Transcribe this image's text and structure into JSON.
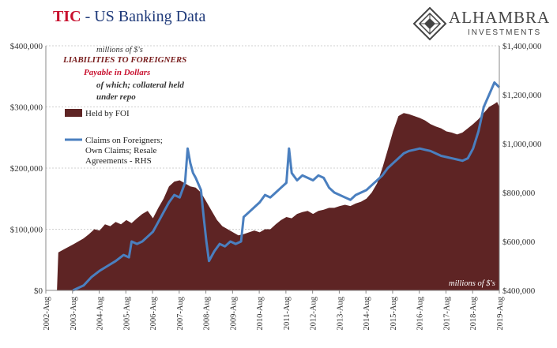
{
  "header": {
    "title_prefix": "TIC",
    "title_rest": " - US Banking Data"
  },
  "logo": {
    "name": "ALHAMBRA",
    "sub": "INVESTMENTS"
  },
  "colors": {
    "area": "#5e2424",
    "line": "#4a7fbf",
    "title_red": "#c8102e",
    "title_blue": "#1f3a7a",
    "annotation_red": "#c8102e",
    "annotation_dark": "#7a2020"
  },
  "chart_data": {
    "type": "area+line",
    "units_label_top": "millions of $'s",
    "units_label_bottom": "millions of $'s",
    "annotations": {
      "line1": "LIABILITIES TO FOREIGNERS",
      "line2": "Payable in Dollars",
      "line3": "of which; collateral held",
      "line4": "under repo"
    },
    "legend": [
      {
        "name": "Held by FOI",
        "kind": "area"
      },
      {
        "name": "Claims on Foreigners; Own Claims; Resale Agreements - RHS",
        "kind": "line",
        "lines": [
          "Claims on Foreigners;",
          "Own Claims; Resale",
          "Agreements - RHS"
        ]
      }
    ],
    "x_labels": [
      "2002-Aug",
      "2003-Aug",
      "2004-Aug",
      "2005-Aug",
      "2006-Aug",
      "2007-Aug",
      "2008-Aug",
      "2009-Aug",
      "2010-Aug",
      "2011-Aug",
      "2012-Aug",
      "2013-Aug",
      "2014-Aug",
      "2015-Aug",
      "2016-Aug",
      "2017-Aug",
      "2018-Aug",
      "2019-Aug"
    ],
    "y_left": {
      "min": 0,
      "max": 400000,
      "ticks": [
        0,
        100000,
        200000,
        300000,
        400000
      ],
      "tick_labels": [
        "$0",
        "$100,000",
        "$200,000",
        "$300,000",
        "$400,000"
      ]
    },
    "y_right": {
      "min": 400000,
      "max": 1400000,
      "ticks": [
        400000,
        600000,
        800000,
        1000000,
        1200000,
        1400000
      ],
      "tick_labels": [
        "$400,000",
        "$600,000",
        "$800,000",
        "$1,000,000",
        "$1,200,000",
        "$1,400,000"
      ]
    },
    "x_range": [
      2002.583,
      2019.583
    ],
    "series": [
      {
        "name": "Held by FOI",
        "axis": "left",
        "points": [
          [
            2003.0,
            0
          ],
          [
            2003.05,
            62000
          ],
          [
            2003.3,
            68000
          ],
          [
            2003.6,
            75000
          ],
          [
            2003.8,
            80000
          ],
          [
            2004.0,
            85000
          ],
          [
            2004.2,
            92000
          ],
          [
            2004.4,
            100000
          ],
          [
            2004.6,
            98000
          ],
          [
            2004.8,
            108000
          ],
          [
            2005.0,
            105000
          ],
          [
            2005.2,
            112000
          ],
          [
            2005.4,
            108000
          ],
          [
            2005.6,
            115000
          ],
          [
            2005.8,
            110000
          ],
          [
            2006.0,
            118000
          ],
          [
            2006.2,
            125000
          ],
          [
            2006.4,
            130000
          ],
          [
            2006.6,
            118000
          ],
          [
            2006.8,
            135000
          ],
          [
            2007.0,
            150000
          ],
          [
            2007.2,
            170000
          ],
          [
            2007.4,
            178000
          ],
          [
            2007.6,
            180000
          ],
          [
            2007.8,
            175000
          ],
          [
            2008.0,
            170000
          ],
          [
            2008.2,
            168000
          ],
          [
            2008.4,
            160000
          ],
          [
            2008.6,
            145000
          ],
          [
            2008.8,
            130000
          ],
          [
            2009.0,
            115000
          ],
          [
            2009.2,
            105000
          ],
          [
            2009.4,
            100000
          ],
          [
            2009.6,
            95000
          ],
          [
            2009.8,
            90000
          ],
          [
            2010.0,
            92000
          ],
          [
            2010.2,
            95000
          ],
          [
            2010.4,
            98000
          ],
          [
            2010.6,
            95000
          ],
          [
            2010.8,
            100000
          ],
          [
            2011.0,
            100000
          ],
          [
            2011.2,
            108000
          ],
          [
            2011.4,
            115000
          ],
          [
            2011.6,
            120000
          ],
          [
            2011.8,
            118000
          ],
          [
            2012.0,
            125000
          ],
          [
            2012.2,
            128000
          ],
          [
            2012.4,
            130000
          ],
          [
            2012.6,
            125000
          ],
          [
            2012.8,
            130000
          ],
          [
            2013.0,
            132000
          ],
          [
            2013.2,
            135000
          ],
          [
            2013.4,
            135000
          ],
          [
            2013.6,
            138000
          ],
          [
            2013.8,
            140000
          ],
          [
            2014.0,
            138000
          ],
          [
            2014.2,
            142000
          ],
          [
            2014.4,
            145000
          ],
          [
            2014.6,
            150000
          ],
          [
            2014.8,
            160000
          ],
          [
            2015.0,
            175000
          ],
          [
            2015.2,
            200000
          ],
          [
            2015.4,
            230000
          ],
          [
            2015.6,
            260000
          ],
          [
            2015.8,
            285000
          ],
          [
            2016.0,
            290000
          ],
          [
            2016.2,
            288000
          ],
          [
            2016.4,
            285000
          ],
          [
            2016.6,
            282000
          ],
          [
            2016.8,
            278000
          ],
          [
            2017.0,
            272000
          ],
          [
            2017.2,
            268000
          ],
          [
            2017.4,
            265000
          ],
          [
            2017.6,
            260000
          ],
          [
            2017.8,
            258000
          ],
          [
            2018.0,
            255000
          ],
          [
            2018.2,
            258000
          ],
          [
            2018.4,
            265000
          ],
          [
            2018.6,
            272000
          ],
          [
            2018.8,
            280000
          ],
          [
            2019.0,
            290000
          ],
          [
            2019.2,
            300000
          ],
          [
            2019.4,
            305000
          ],
          [
            2019.5,
            308000
          ],
          [
            2019.583,
            300000
          ]
        ]
      },
      {
        "name": "Claims on Foreigners; Own Claims; Resale Agreements - RHS",
        "axis": "right",
        "points": [
          [
            2003.6,
            400000
          ],
          [
            2004.0,
            420000
          ],
          [
            2004.3,
            455000
          ],
          [
            2004.6,
            480000
          ],
          [
            2004.9,
            500000
          ],
          [
            2005.2,
            520000
          ],
          [
            2005.5,
            545000
          ],
          [
            2005.7,
            535000
          ],
          [
            2005.8,
            600000
          ],
          [
            2006.0,
            590000
          ],
          [
            2006.2,
            600000
          ],
          [
            2006.4,
            620000
          ],
          [
            2006.6,
            640000
          ],
          [
            2006.8,
            680000
          ],
          [
            2007.0,
            720000
          ],
          [
            2007.2,
            760000
          ],
          [
            2007.4,
            790000
          ],
          [
            2007.6,
            780000
          ],
          [
            2007.8,
            840000
          ],
          [
            2007.9,
            980000
          ],
          [
            2008.0,
            920000
          ],
          [
            2008.1,
            880000
          ],
          [
            2008.2,
            860000
          ],
          [
            2008.4,
            810000
          ],
          [
            2008.5,
            700000
          ],
          [
            2008.6,
            600000
          ],
          [
            2008.7,
            520000
          ],
          [
            2008.9,
            560000
          ],
          [
            2009.1,
            590000
          ],
          [
            2009.3,
            580000
          ],
          [
            2009.5,
            600000
          ],
          [
            2009.7,
            590000
          ],
          [
            2009.9,
            600000
          ],
          [
            2010.0,
            700000
          ],
          [
            2010.2,
            720000
          ],
          [
            2010.4,
            740000
          ],
          [
            2010.6,
            760000
          ],
          [
            2010.8,
            790000
          ],
          [
            2011.0,
            780000
          ],
          [
            2011.2,
            800000
          ],
          [
            2011.4,
            820000
          ],
          [
            2011.6,
            840000
          ],
          [
            2011.7,
            980000
          ],
          [
            2011.8,
            880000
          ],
          [
            2012.0,
            850000
          ],
          [
            2012.2,
            870000
          ],
          [
            2012.4,
            860000
          ],
          [
            2012.6,
            850000
          ],
          [
            2012.8,
            870000
          ],
          [
            2013.0,
            860000
          ],
          [
            2013.2,
            820000
          ],
          [
            2013.4,
            800000
          ],
          [
            2013.6,
            790000
          ],
          [
            2013.8,
            780000
          ],
          [
            2014.0,
            770000
          ],
          [
            2014.2,
            790000
          ],
          [
            2014.4,
            800000
          ],
          [
            2014.6,
            810000
          ],
          [
            2014.8,
            830000
          ],
          [
            2015.0,
            850000
          ],
          [
            2015.2,
            870000
          ],
          [
            2015.4,
            900000
          ],
          [
            2015.6,
            920000
          ],
          [
            2015.8,
            940000
          ],
          [
            2016.0,
            960000
          ],
          [
            2016.2,
            970000
          ],
          [
            2016.4,
            975000
          ],
          [
            2016.6,
            980000
          ],
          [
            2016.8,
            975000
          ],
          [
            2017.0,
            970000
          ],
          [
            2017.2,
            960000
          ],
          [
            2017.4,
            950000
          ],
          [
            2017.6,
            945000
          ],
          [
            2017.8,
            940000
          ],
          [
            2018.0,
            935000
          ],
          [
            2018.2,
            930000
          ],
          [
            2018.4,
            940000
          ],
          [
            2018.6,
            980000
          ],
          [
            2018.8,
            1050000
          ],
          [
            2019.0,
            1150000
          ],
          [
            2019.2,
            1200000
          ],
          [
            2019.4,
            1250000
          ],
          [
            2019.583,
            1230000
          ]
        ]
      }
    ]
  }
}
